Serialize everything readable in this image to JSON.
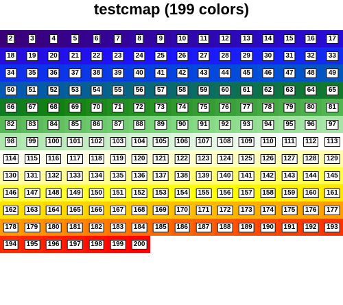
{
  "title": "testcmap (199 colors)",
  "colormap": {
    "first_index": 2,
    "last_index": 200,
    "columns": 16,
    "color_stops": [
      "#3a007a",
      "#1e12ff",
      "#0050d8",
      "#128010",
      "#80d880",
      "#ffffff",
      "#fffd90",
      "#ffff00",
      "#ff9a00",
      "#ff0000"
    ],
    "values": [
      2,
      3,
      4,
      5,
      6,
      7,
      8,
      9,
      10,
      11,
      12,
      13,
      14,
      15,
      16,
      17,
      18,
      19,
      20,
      21,
      22,
      23,
      24,
      25,
      26,
      27,
      28,
      29,
      30,
      31,
      32,
      33,
      34,
      35,
      36,
      37,
      38,
      39,
      40,
      41,
      42,
      43,
      44,
      45,
      46,
      47,
      48,
      49,
      50,
      51,
      52,
      53,
      54,
      55,
      56,
      57,
      58,
      59,
      60,
      61,
      62,
      63,
      64,
      65,
      66,
      67,
      68,
      69,
      70,
      71,
      72,
      73,
      74,
      75,
      76,
      77,
      78,
      79,
      80,
      81,
      82,
      83,
      84,
      85,
      86,
      87,
      88,
      89,
      90,
      91,
      92,
      93,
      94,
      95,
      96,
      97,
      98,
      99,
      100,
      101,
      102,
      103,
      104,
      105,
      106,
      107,
      108,
      109,
      110,
      111,
      112,
      113,
      114,
      115,
      116,
      117,
      118,
      119,
      120,
      121,
      122,
      123,
      124,
      125,
      126,
      127,
      128,
      129,
      130,
      131,
      132,
      133,
      134,
      135,
      136,
      137,
      138,
      139,
      140,
      141,
      142,
      143,
      144,
      145,
      146,
      147,
      148,
      149,
      150,
      151,
      152,
      153,
      154,
      155,
      156,
      157,
      158,
      159,
      160,
      161,
      162,
      163,
      164,
      165,
      166,
      167,
      168,
      169,
      170,
      171,
      172,
      173,
      174,
      175,
      176,
      177,
      178,
      179,
      180,
      181,
      182,
      183,
      184,
      185,
      186,
      187,
      188,
      189,
      190,
      191,
      192,
      193,
      194,
      195,
      196,
      197,
      198,
      199,
      200
    ]
  }
}
